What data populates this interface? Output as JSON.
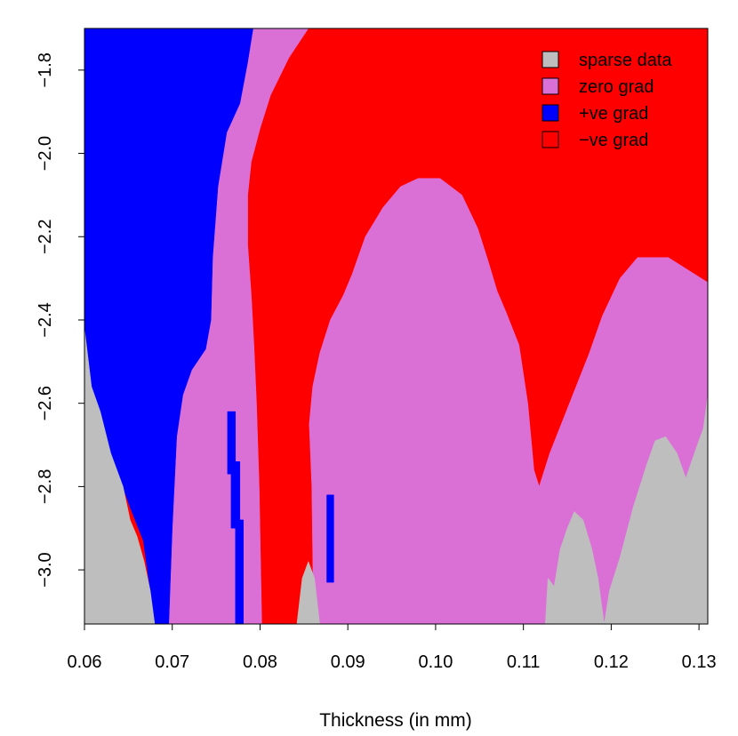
{
  "chart_data": {
    "type": "heatmap",
    "title": "",
    "xlabel": "Thickness (in mm)",
    "ylabel": "",
    "xlim": [
      0.06,
      0.131
    ],
    "ylim": [
      -3.13,
      -1.7
    ],
    "x_ticks": [
      "0.06",
      "0.07",
      "0.08",
      "0.09",
      "0.10",
      "0.11",
      "0.12",
      "0.13"
    ],
    "x_tick_values": [
      0.06,
      0.07,
      0.08,
      0.09,
      0.1,
      0.11,
      0.12,
      0.13
    ],
    "y_ticks": [
      "−1.8",
      "−2.0",
      "−2.2",
      "−2.4",
      "−2.6",
      "−2.8",
      "−3.0"
    ],
    "y_tick_values": [
      -1.8,
      -2.0,
      -2.2,
      -2.4,
      -2.6,
      -2.8,
      -3.0
    ],
    "legend": {
      "position": "top-right",
      "entries": [
        {
          "label": "sparse data",
          "color": "#bebebe"
        },
        {
          "label": "zero grad",
          "color": "#da70d6"
        },
        {
          "label": "+ve grad",
          "color": "#0000ff"
        },
        {
          "label": "−ve grad",
          "color": "#ff0000"
        }
      ]
    },
    "background_category": "−ve grad",
    "regions": [
      {
        "category": "zero grad",
        "color": "#da70d6",
        "points": [
          [
            0.0855,
            -1.7
          ],
          [
            0.0833,
            -1.77
          ],
          [
            0.0812,
            -1.86
          ],
          [
            0.08,
            -1.94
          ],
          [
            0.079,
            -2.02
          ],
          [
            0.0786,
            -2.1
          ],
          [
            0.0786,
            -2.22
          ],
          [
            0.079,
            -2.34
          ],
          [
            0.0793,
            -2.46
          ],
          [
            0.0796,
            -2.6
          ],
          [
            0.0799,
            -2.8
          ],
          [
            0.0802,
            -3.13
          ],
          [
            0.069,
            -3.13
          ],
          [
            0.0685,
            -2.6
          ],
          [
            0.069,
            -2.0
          ],
          [
            0.07,
            -1.85
          ],
          [
            0.072,
            -1.7
          ]
        ]
      },
      {
        "category": "zero grad",
        "color": "#da70d6",
        "points": [
          [
            0.0861,
            -3.13
          ],
          [
            0.0859,
            -2.8
          ],
          [
            0.0856,
            -2.65
          ],
          [
            0.086,
            -2.56
          ],
          [
            0.0868,
            -2.48
          ],
          [
            0.088,
            -2.4
          ],
          [
            0.0895,
            -2.34
          ],
          [
            0.0905,
            -2.29
          ],
          [
            0.092,
            -2.2
          ],
          [
            0.094,
            -2.13
          ],
          [
            0.096,
            -2.08
          ],
          [
            0.098,
            -2.06
          ],
          [
            0.1005,
            -2.06
          ],
          [
            0.103,
            -2.1
          ],
          [
            0.1048,
            -2.18
          ],
          [
            0.106,
            -2.26
          ],
          [
            0.107,
            -2.33
          ],
          [
            0.108,
            -2.38
          ],
          [
            0.1095,
            -2.46
          ],
          [
            0.1105,
            -2.6
          ],
          [
            0.1112,
            -2.76
          ],
          [
            0.1118,
            -2.8
          ],
          [
            0.113,
            -2.72
          ],
          [
            0.1145,
            -2.64
          ],
          [
            0.116,
            -2.56
          ],
          [
            0.1175,
            -2.48
          ],
          [
            0.119,
            -2.39
          ],
          [
            0.121,
            -2.3
          ],
          [
            0.123,
            -2.25
          ],
          [
            0.1265,
            -2.25
          ],
          [
            0.1295,
            -2.29
          ],
          [
            0.131,
            -2.31
          ],
          [
            0.131,
            -3.13
          ]
        ]
      },
      {
        "category": "+ve grad",
        "color": "#0000ff",
        "points": [
          [
            0.06,
            -1.7
          ],
          [
            0.0792,
            -1.7
          ],
          [
            0.0786,
            -1.78
          ],
          [
            0.0777,
            -1.88
          ],
          [
            0.0762,
            -1.95
          ],
          [
            0.0752,
            -2.08
          ],
          [
            0.0746,
            -2.25
          ],
          [
            0.0744,
            -2.4
          ],
          [
            0.0738,
            -2.47
          ],
          [
            0.0722,
            -2.52
          ],
          [
            0.0712,
            -2.58
          ],
          [
            0.0705,
            -2.68
          ],
          [
            0.07,
            -2.9
          ],
          [
            0.0696,
            -3.13
          ],
          [
            0.068,
            -3.13
          ],
          [
            0.0675,
            -3.05
          ],
          [
            0.0667,
            -2.93
          ],
          [
            0.0652,
            -2.85
          ],
          [
            0.063,
            -2.72
          ],
          [
            0.0608,
            -2.56
          ],
          [
            0.06,
            -2.42
          ]
        ]
      },
      {
        "category": "+ve grad",
        "color": "#0000ff",
        "points": [
          [
            0.0763,
            -2.62
          ],
          [
            0.0772,
            -2.62
          ],
          [
            0.0772,
            -2.74
          ],
          [
            0.0777,
            -2.74
          ],
          [
            0.0777,
            -2.88
          ],
          [
            0.0781,
            -2.88
          ],
          [
            0.0781,
            -3.13
          ],
          [
            0.0772,
            -3.13
          ],
          [
            0.0772,
            -2.9
          ],
          [
            0.0767,
            -2.9
          ],
          [
            0.0767,
            -2.77
          ],
          [
            0.0763,
            -2.77
          ]
        ]
      },
      {
        "category": "+ve grad",
        "color": "#0000ff",
        "points": [
          [
            0.0876,
            -2.82
          ],
          [
            0.0884,
            -2.82
          ],
          [
            0.0884,
            -3.03
          ],
          [
            0.0876,
            -3.03
          ]
        ]
      },
      {
        "category": "sparse data",
        "color": "#bebebe",
        "points": [
          [
            0.06,
            -2.42
          ],
          [
            0.0608,
            -2.56
          ],
          [
            0.0618,
            -2.62
          ],
          [
            0.063,
            -2.72
          ],
          [
            0.0644,
            -2.8
          ],
          [
            0.0652,
            -2.88
          ],
          [
            0.066,
            -2.92
          ],
          [
            0.0668,
            -2.98
          ],
          [
            0.0675,
            -3.05
          ],
          [
            0.068,
            -3.13
          ],
          [
            0.06,
            -3.13
          ]
        ]
      },
      {
        "category": "sparse data",
        "color": "#bebebe",
        "points": [
          [
            0.0842,
            -3.13
          ],
          [
            0.0848,
            -3.02
          ],
          [
            0.0855,
            -2.98
          ],
          [
            0.0862,
            -3.02
          ],
          [
            0.0868,
            -3.13
          ]
        ]
      },
      {
        "category": "sparse data",
        "color": "#bebebe",
        "points": [
          [
            0.1125,
            -3.13
          ],
          [
            0.1128,
            -3.02
          ],
          [
            0.1135,
            -3.04
          ],
          [
            0.1142,
            -2.95
          ],
          [
            0.115,
            -2.9
          ],
          [
            0.1158,
            -2.86
          ],
          [
            0.1168,
            -2.88
          ],
          [
            0.1178,
            -2.95
          ],
          [
            0.1185,
            -3.02
          ],
          [
            0.1192,
            -3.13
          ]
        ]
      },
      {
        "category": "sparse data",
        "color": "#bebebe",
        "points": [
          [
            0.1192,
            -3.13
          ],
          [
            0.1198,
            -3.05
          ],
          [
            0.121,
            -2.97
          ],
          [
            0.1225,
            -2.85
          ],
          [
            0.124,
            -2.75
          ],
          [
            0.125,
            -2.69
          ],
          [
            0.1262,
            -2.68
          ],
          [
            0.1275,
            -2.72
          ],
          [
            0.1285,
            -2.78
          ],
          [
            0.1298,
            -2.7
          ],
          [
            0.1305,
            -2.66
          ],
          [
            0.131,
            -2.58
          ],
          [
            0.131,
            -3.13
          ]
        ]
      }
    ]
  }
}
